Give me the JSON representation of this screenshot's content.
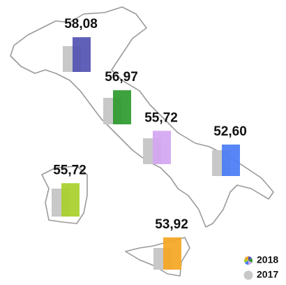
{
  "chart_data": {
    "type": "bar",
    "series": [
      {
        "name": "2018",
        "colors": [
          "#5252b2",
          "#2e9a2e",
          "#d2a6f2",
          "#4a7cf5",
          "#a8d02a",
          "#f5a623"
        ],
        "values": [
          58.08,
          56.97,
          55.72,
          52.6,
          55.72,
          53.92
        ],
        "value_labels": [
          "58,08",
          "56,97",
          "55,72",
          "52,60",
          "55,72",
          "53,92"
        ]
      },
      {
        "name": "2017",
        "color": "#c8c8c8",
        "values": [
          43.2,
          44.3,
          43.2,
          43.2,
          46.7,
          36.2
        ]
      }
    ],
    "ylim": [
      0,
      70
    ]
  }
}
